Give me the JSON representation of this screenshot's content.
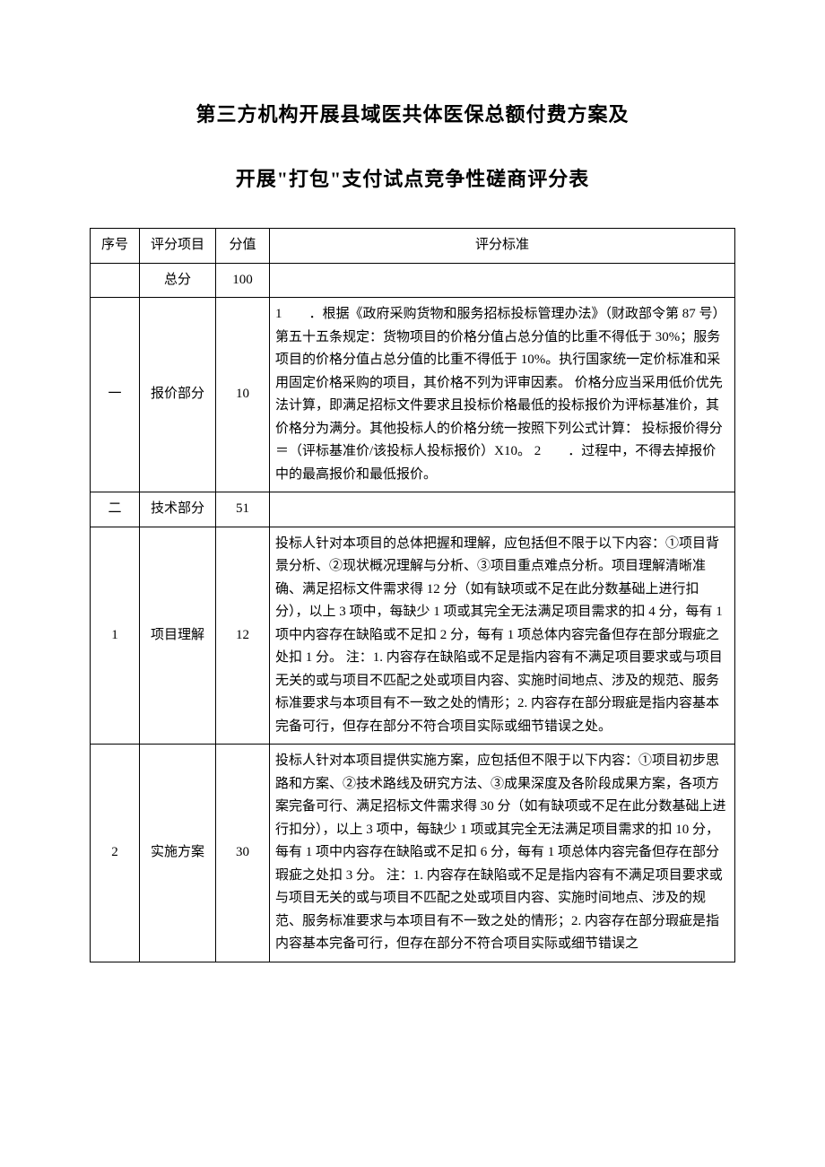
{
  "title_line1": "第三方机构开展县域医共体医保总额付费方案及",
  "title_line2": "开展\"打包\"支付试点竞争性磋商评分表",
  "headers": {
    "seq": "序号",
    "item": "评分项目",
    "score": "分值",
    "criteria": "评分标准"
  },
  "rows": {
    "total": {
      "seq": "",
      "item": "总分",
      "score": "100",
      "criteria": ""
    },
    "r1": {
      "seq": "一",
      "item": "报价部分",
      "score": "10",
      "criteria": "1　　．根据《政府采购货物和服务招标投标管理办法》（财政部令第 87 号）第五十五条规定：货物项目的价格分值占总分值的比重不得低于 30%；服务项目的价格分值占总分值的比重不得低于 10%。执行国家统一定价标准和采用固定价格采购的项目，其价格不列为评审因素。\n价格分应当采用低价优先法计算，即满足招标文件要求且投标价格最低的投标报价为评标基准价，其价格分为满分。其他投标人的价格分统一按照下列公式计算：\n投标报价得分＝（评标基准价/该投标人投标报价）X10。\n2　　．过程中，不得去掉报价中的最高报价和最低报价。"
    },
    "r2": {
      "seq": "二",
      "item": "技术部分",
      "score": "51",
      "criteria": ""
    },
    "r2_1": {
      "seq": "1",
      "item": "项目理解",
      "score": "12",
      "criteria": "投标人针对本项目的总体把握和理解，应包括但不限于以下内容：①项目背景分析、②现状概况理解与分析、③项目重点难点分析。项目理解清晰准确、满足招标文件需求得 12 分（如有缺项或不足在此分数基础上进行扣分），以上 3 项中，每缺少 1 项或其完全无法满足项目需求的扣 4 分，每有 1 项中内容存在缺陷或不足扣 2 分，每有 1 项总体内容完备但存在部分瑕疵之处扣 1 分。\n注：1. 内容存在缺陷或不足是指内容有不满足项目要求或与项目无关的或与项目不匹配之处或项目内容、实施时间地点、涉及的规范、服务标准要求与本项目有不一致之处的情形；2. 内容存在部分瑕疵是指内容基本完备可行，但存在部分不符合项目实际或细节错误之处。"
    },
    "r2_2": {
      "seq": "2",
      "item": "实施方案",
      "score": "30",
      "criteria": "投标人针对本项目提供实施方案，应包括但不限于以下内容：①项目初步思路和方案、②技术路线及研究方法、③成果深度及各阶段成果方案，各项方案完备可行、满足招标文件需求得 30 分（如有缺项或不足在此分数基础上进行扣分），以上 3 项中，每缺少 1 项或其完全无法满足项目需求的扣 10 分，每有 1 项中内容存在缺陷或不足扣 6 分，每有 1 项总体内容完备但存在部分瑕疵之处扣 3 分。\n注：1. 内容存在缺陷或不足是指内容有不满足项目要求或与项目无关的或与项目不匹配之处或项目内容、实施时间地点、涉及的规范、服务标准要求与本项目有不一致之处的情形；2. 内容存在部分瑕疵是指内容基本完备可行，但存在部分不符合项目实际或细节错误之"
    }
  }
}
